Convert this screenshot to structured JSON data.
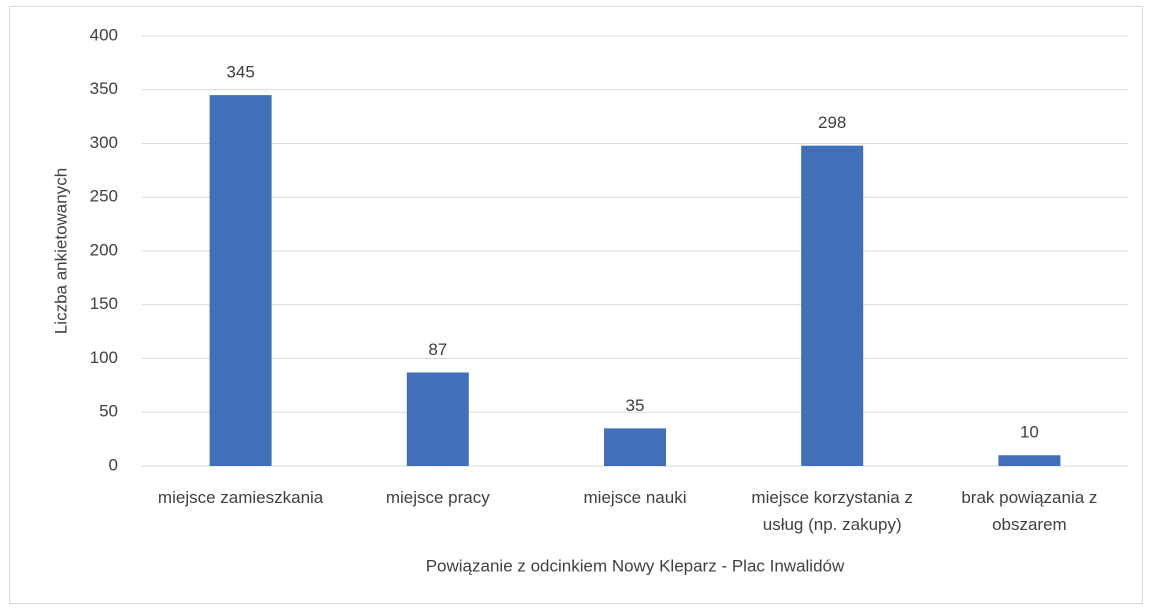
{
  "chart_data": {
    "type": "bar",
    "x_label": "Powiązanie z odcinkiem Nowy Kleparz - Plac Inwalidów",
    "y_label": "Liczba ankietowanych",
    "categories": [
      "miejsce zamieszkania",
      "miejsce pracy",
      "miejsce nauki",
      "miejsce korzystania z usług (np. zakupy)",
      "brak powiązania z obszarem"
    ],
    "values": [
      345,
      87,
      35,
      298,
      10
    ],
    "color": "#4170b9",
    "ylim": [
      0,
      400
    ],
    "yticks": [
      0,
      50,
      100,
      150,
      200,
      250,
      300,
      350,
      400
    ],
    "grid": true
  }
}
